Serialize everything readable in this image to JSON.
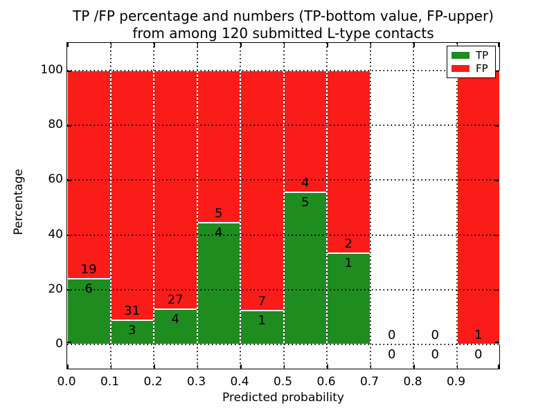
{
  "chart_data": {
    "type": "bar",
    "stacked": true,
    "title": "TP /FP percentage and numbers (TP-bottom value, FP-upper)",
    "subtitle": "from among 120 submitted L-type contacts",
    "xlabel": "Predicted probability",
    "ylabel": "Percentage",
    "x_tick_labels": [
      "0.0",
      "0.1",
      "0.2",
      "0.3",
      "0.4",
      "0.5",
      "0.6",
      "0.7",
      "0.8",
      "0.9"
    ],
    "y_ticks": [
      0,
      20,
      40,
      60,
      80,
      100
    ],
    "y_tick_labels": [
      "0",
      "20",
      "40",
      "60",
      "80",
      "100"
    ],
    "xlim": [
      0.0,
      1.0
    ],
    "ylim": [
      -10,
      110
    ],
    "grid": true,
    "grid_style": "dotted",
    "bin_width": 0.1,
    "colors": {
      "tp": "#1f8c1f",
      "fp": "#f91c18"
    },
    "legend": {
      "position": "upper-right",
      "entries": [
        {
          "label": "TP",
          "color": "#1f8c1f"
        },
        {
          "label": "FP",
          "color": "#f91c18"
        }
      ]
    },
    "bins": [
      {
        "range": [
          0.0,
          0.1
        ],
        "tp_count": 6,
        "fp_count": 19,
        "tp_pct": 24.0,
        "fp_pct": 76.0
      },
      {
        "range": [
          0.1,
          0.2
        ],
        "tp_count": 3,
        "fp_count": 31,
        "tp_pct": 8.8,
        "fp_pct": 91.2
      },
      {
        "range": [
          0.2,
          0.3
        ],
        "tp_count": 4,
        "fp_count": 27,
        "tp_pct": 12.9,
        "fp_pct": 87.1
      },
      {
        "range": [
          0.3,
          0.4
        ],
        "tp_count": 4,
        "fp_count": 5,
        "tp_pct": 44.4,
        "fp_pct": 55.6
      },
      {
        "range": [
          0.4,
          0.5
        ],
        "tp_count": 1,
        "fp_count": 7,
        "tp_pct": 12.5,
        "fp_pct": 87.5
      },
      {
        "range": [
          0.5,
          0.6
        ],
        "tp_count": 5,
        "fp_count": 4,
        "tp_pct": 55.6,
        "fp_pct": 44.4
      },
      {
        "range": [
          0.6,
          0.7
        ],
        "tp_count": 1,
        "fp_count": 2,
        "tp_pct": 33.3,
        "fp_pct": 66.7
      },
      {
        "range": [
          0.7,
          0.8
        ],
        "tp_count": 0,
        "fp_count": 0,
        "tp_pct": 0.0,
        "fp_pct": 0.0
      },
      {
        "range": [
          0.8,
          0.9
        ],
        "tp_count": 0,
        "fp_count": 0,
        "tp_pct": 0.0,
        "fp_pct": 0.0
      },
      {
        "range": [
          0.9,
          1.0
        ],
        "tp_count": 0,
        "fp_count": 1,
        "tp_pct": 0.0,
        "fp_pct": 100.0
      }
    ]
  }
}
